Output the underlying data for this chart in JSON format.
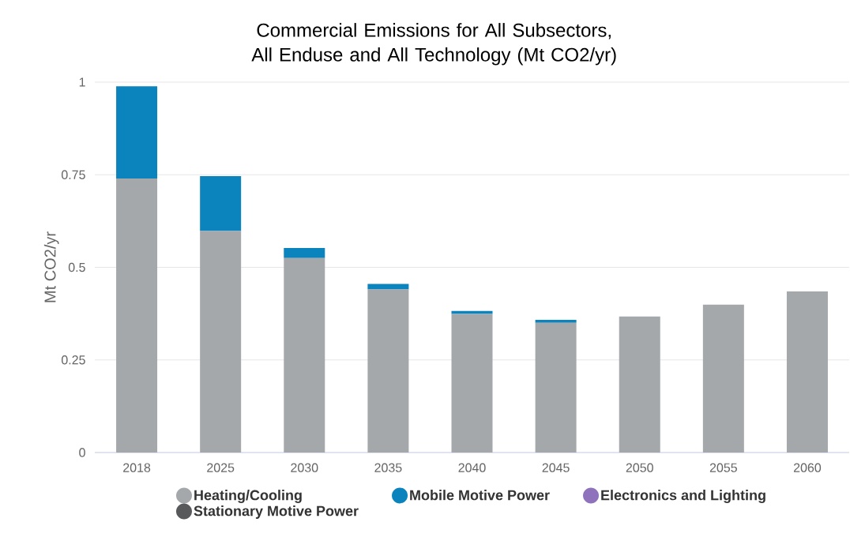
{
  "chart_data": {
    "type": "bar",
    "title": "Commercial Emissions for All Subsectors, All Enduse and All Technology (Mt CO2/yr)",
    "ylabel": "Mt CO2/yr",
    "categories": [
      "2018",
      "2025",
      "2030",
      "2035",
      "2040",
      "2045",
      "2050",
      "2055",
      "2060"
    ],
    "stacked": true,
    "series": [
      {
        "name": "Heating/Cooling",
        "color": "#a5a8ab",
        "values": [
          0.74,
          0.598,
          0.525,
          0.44,
          0.374,
          0.35,
          0.367,
          0.399,
          0.435
        ]
      },
      {
        "name": "Mobile Motive Power",
        "color": "#0b84be",
        "values": [
          0.249,
          0.148,
          0.027,
          0.015,
          0.008,
          0.008,
          0,
          0,
          0
        ]
      },
      {
        "name": "Electronics and Lighting",
        "color": "#8e72bb",
        "values": [
          0,
          0,
          0,
          0,
          0,
          0,
          0,
          0,
          0
        ]
      },
      {
        "name": "Stationary Motive Power",
        "color": "#58595b",
        "values": [
          0,
          0,
          0,
          0,
          0,
          0,
          0,
          0,
          0
        ]
      }
    ],
    "ylim": [
      0,
      1
    ],
    "yticks": [
      0,
      0.25,
      0.5,
      0.75,
      1
    ],
    "grid": "y",
    "legend": "bottom"
  }
}
